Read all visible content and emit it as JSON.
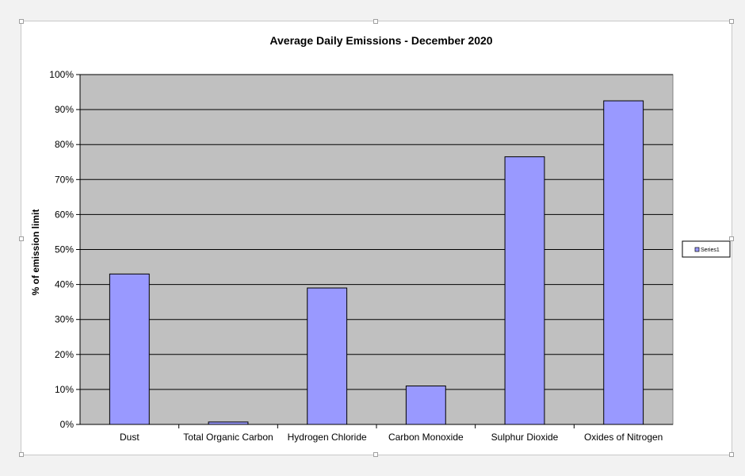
{
  "chart_data": {
    "type": "bar",
    "title": "Average Daily Emissions - December 2020",
    "xlabel": "",
    "ylabel": "% of emission limit",
    "categories": [
      "Dust",
      "Total Organic Carbon",
      "Hydrogen Chloride",
      "Carbon Monoxide",
      "Sulphur Dioxide",
      "Oxides of Nitrogen"
    ],
    "series": [
      {
        "name": "Series1",
        "values": [
          43,
          0.7,
          39,
          11,
          76.5,
          92.5
        ]
      }
    ],
    "ylim": [
      0,
      100
    ],
    "yticks": [
      "0%",
      "10%",
      "20%",
      "30%",
      "40%",
      "50%",
      "60%",
      "70%",
      "80%",
      "90%",
      "100%"
    ],
    "grid": true,
    "legend_position": "right",
    "colors": {
      "bar_fill": "#9999ff",
      "bar_stroke": "#000000",
      "plot_background": "#c0c0c0",
      "gridline": "#000000"
    }
  }
}
